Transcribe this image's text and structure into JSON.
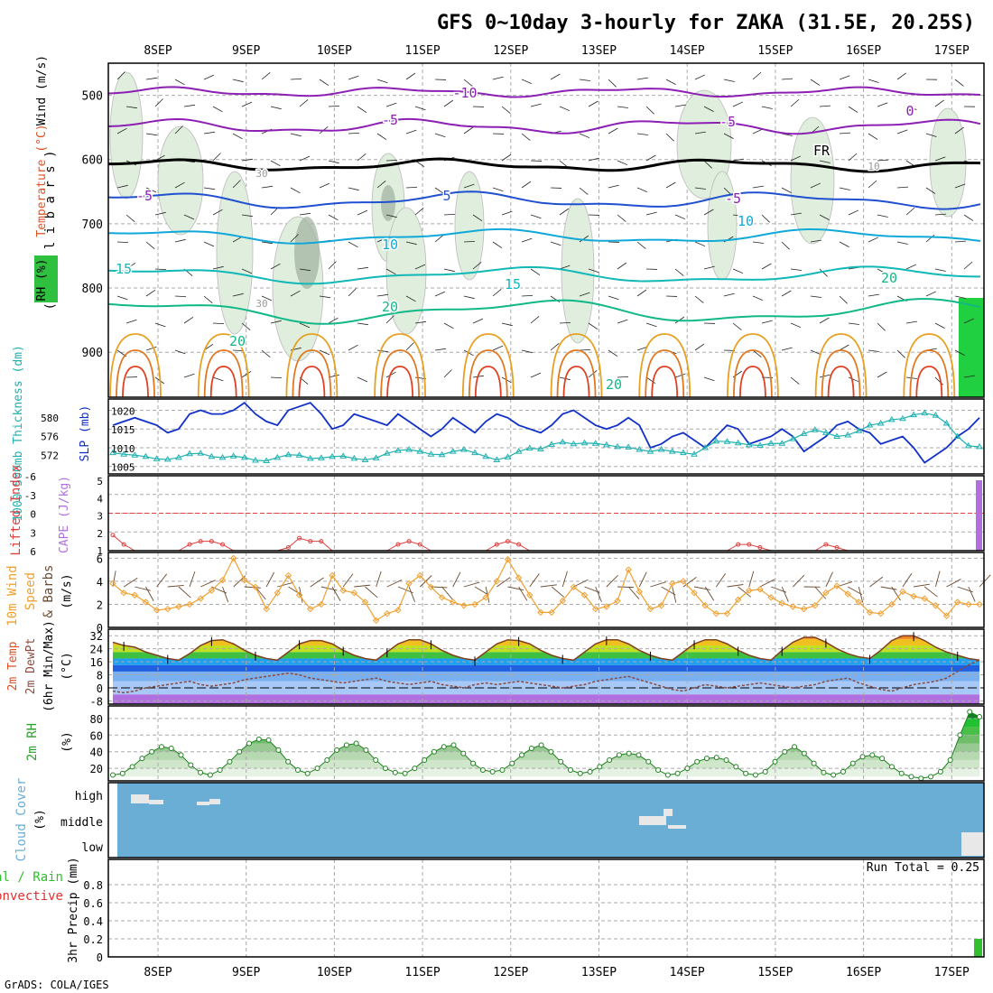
{
  "title": "GFS 0~10day 3-hourly for ZAKA (31.5E, 20.25S)",
  "footer": "GrADS: COLA/IGES",
  "dates": [
    "8SEP",
    "9SEP",
    "10SEP",
    "11SEP",
    "12SEP",
    "13SEP",
    "14SEP",
    "15SEP",
    "16SEP",
    "17SEP"
  ],
  "colors": {
    "purple": "#8c1fb4",
    "black": "#000000",
    "blue5": "#2050d0",
    "cyan10": "#10a8d8",
    "teal15": "#10b8b8",
    "green20": "#10b888",
    "orange": "#e8a020",
    "red": "#e04020",
    "slp": "#1030c8",
    "thick": "#20b0b0",
    "li": "#e04040",
    "cape": "#b070e0",
    "wind10": "#f0a030",
    "barb": "#6a4a30",
    "rh2m": "#30a030",
    "cloud": "#6aaed6",
    "cloudFill": "#e8e8e8",
    "precip": "#30c030"
  },
  "chart_data": [
    {
      "panel": "upper-air",
      "type": "contour",
      "ylabel_parts": [
        "Wind (m/s)",
        "Temperature (°C)",
        "RH (%)"
      ],
      "ylabel_unit": "( m i l l i b a r s )",
      "y_ticks": [
        500,
        600,
        700,
        800,
        900
      ],
      "ylim": [
        450,
        970
      ],
      "contour_labels": [
        {
          "text": "-10",
          "level": "-10"
        },
        {
          "text": "-5",
          "level": "-5"
        },
        {
          "text": "-5",
          "level": "-5"
        },
        {
          "text": "FR",
          "level": "0"
        },
        {
          "text": "-5",
          "level": "-5"
        },
        {
          "text": "5",
          "level": "5"
        },
        {
          "text": "-5",
          "level": "-5"
        },
        {
          "text": "10",
          "level": "10"
        },
        {
          "text": "10",
          "level": "10"
        },
        {
          "text": "15",
          "level": "15"
        },
        {
          "text": "15",
          "level": "15"
        },
        {
          "text": "20",
          "level": "20"
        },
        {
          "text": "20",
          "level": "20"
        },
        {
          "text": "20",
          "level": "20"
        },
        {
          "text": "20",
          "level": "20"
        },
        {
          "text": "30",
          "level": "rh30"
        },
        {
          "text": "30",
          "level": "rh30"
        },
        {
          "text": "10",
          "level": "rh10"
        },
        {
          "text": "0",
          "level": "-5"
        }
      ]
    },
    {
      "panel": "slp-thickness",
      "type": "line",
      "ylabel_left": "1000-500mb Thickness (dm)",
      "ylabel_right": "SLP (mb)",
      "y_ticks_left": [
        572,
        576,
        580
      ],
      "y_ticks_right": [
        1005,
        1010,
        1015,
        1020
      ],
      "series": [
        {
          "name": "SLP (mb)",
          "values": [
            1016,
            1017,
            1018,
            1017,
            1016,
            1014,
            1015,
            1019,
            1020,
            1019,
            1019,
            1020,
            1022,
            1019,
            1017,
            1016,
            1020,
            1021,
            1022,
            1019,
            1015,
            1016,
            1019,
            1018,
            1017,
            1016,
            1019,
            1017,
            1015,
            1013,
            1015,
            1018,
            1016,
            1014,
            1017,
            1019,
            1018,
            1016,
            1015,
            1014,
            1016,
            1019,
            1020,
            1018,
            1016,
            1015,
            1016,
            1018,
            1016,
            1010,
            1011,
            1013,
            1014,
            1012,
            1010,
            1013,
            1016,
            1015,
            1011,
            1012,
            1013,
            1015,
            1013,
            1009,
            1011,
            1013,
            1016,
            1017,
            1015,
            1014,
            1011,
            1012,
            1013,
            1010,
            1006,
            1008,
            1010,
            1013,
            1015,
            1018
          ]
        },
        {
          "name": "Thickness (dm)",
          "values": [
            572.5,
            572.2,
            572,
            571.7,
            571.2,
            571.1,
            571.5,
            572.3,
            572.4,
            571.7,
            571.5,
            571.8,
            571.5,
            570.9,
            570.8,
            571.5,
            572.1,
            572,
            571.3,
            571.4,
            571.7,
            571.8,
            571.3,
            571,
            571.4,
            572.4,
            573,
            573.2,
            572.8,
            572.2,
            572.1,
            572.8,
            573.2,
            572.5,
            571.7,
            571,
            571.6,
            572.8,
            573.5,
            573.3,
            574.3,
            574.8,
            574.4,
            574.6,
            574.5,
            574.2,
            573.8,
            573.7,
            573.2,
            572.8,
            573.2,
            572.8,
            572.5,
            572.2,
            573.6,
            575,
            574.9,
            574.6,
            574.2,
            574.1,
            574.5,
            574.5,
            575.5,
            576.6,
            577.4,
            576.8,
            576,
            576.3,
            577.2,
            578.4,
            578.8,
            579.6,
            579.8,
            580.6,
            581,
            580.5,
            578.8,
            576,
            574,
            573.8
          ]
        }
      ]
    },
    {
      "panel": "lifted-cape",
      "type": "line",
      "ylabel_left": "Lifted Index",
      "ylabel_right": "CAPE (J/kg)",
      "y_ticks_left": [
        -6,
        -3,
        0,
        3,
        6
      ],
      "y_ticks_right": [
        1,
        2,
        3,
        4,
        5
      ],
      "series": [
        {
          "name": "Lifted Index",
          "values": [
            3.5,
            5,
            6.5,
            7,
            8,
            7,
            7,
            5,
            4.5,
            4.5,
            5,
            6,
            7,
            6.5,
            7,
            7,
            5.5,
            4,
            4.5,
            4.5,
            6,
            7.5,
            7,
            7.5,
            7,
            6,
            5,
            4.5,
            5,
            6,
            6.5,
            7,
            7,
            6.5,
            6,
            5,
            4.5,
            5,
            6,
            7,
            6.5,
            6,
            7,
            6.5,
            7,
            6,
            6.5,
            7,
            8,
            7,
            7.5,
            8,
            7,
            6.5,
            7,
            8,
            7,
            5,
            5,
            5.5,
            7,
            8,
            7.5,
            7,
            6.5,
            5,
            5.5,
            6.5,
            7.5,
            7,
            8,
            7,
            7.5,
            7,
            6,
            6.5,
            7,
            7.5,
            7,
            7
          ]
        },
        {
          "name": "CAPE (J/kg)",
          "values": [
            0,
            0,
            0,
            0,
            0,
            0,
            0,
            0,
            0,
            0,
            0,
            0,
            0,
            0,
            0,
            0,
            0,
            0,
            0,
            0,
            0,
            0,
            0,
            0,
            0,
            0,
            0,
            0,
            0,
            0,
            0,
            0,
            0,
            0,
            0,
            0,
            0,
            0,
            0,
            0,
            0,
            0,
            0,
            0,
            0,
            0,
            0,
            0,
            0,
            0,
            0,
            0,
            0,
            0,
            0,
            0,
            0,
            0,
            0,
            0,
            0,
            0,
            0,
            0,
            0,
            0,
            0,
            0,
            0,
            0,
            0,
            0,
            0,
            0,
            0,
            0,
            0,
            0,
            0,
            5
          ]
        }
      ],
      "reference_line": 0
    },
    {
      "panel": "wind10m",
      "type": "line",
      "ylabel": "10m Wind Speed & Barbs (m/s)",
      "y_ticks": [
        0,
        2,
        4,
        6
      ],
      "series": [
        {
          "name": "Speed (m/s)",
          "values": [
            3.8,
            3,
            2.8,
            2.2,
            1.5,
            1.6,
            1.8,
            2,
            2.5,
            3.2,
            4.1,
            6,
            4.1,
            3.5,
            1.6,
            3,
            4.5,
            2.8,
            1.6,
            2,
            4.5,
            3.2,
            3,
            2.2,
            0.6,
            1.2,
            1.5,
            3.8,
            4.5,
            3.5,
            2.6,
            2.2,
            1.9,
            2,
            2.6,
            4,
            5.9,
            4.3,
            2.8,
            1.3,
            1.3,
            2.3,
            3.5,
            2.8,
            1.6,
            1.8,
            2.3,
            5,
            3.1,
            1.6,
            1.9,
            3.8,
            4,
            3,
            1.9,
            1.2,
            1.2,
            2.4,
            3.2,
            3.3,
            2.6,
            2.1,
            1.8,
            1.6,
            1.9,
            3,
            3.6,
            2.9,
            2.2,
            1.3,
            1.2,
            2,
            3.1,
            2.7,
            2.5,
            1.9,
            1,
            2.2,
            2,
            2
          ]
        }
      ]
    },
    {
      "panel": "temp2m",
      "type": "area",
      "ylabel": "2m Temp 2m DewPt (6hr Min/Max) (°C)",
      "y_ticks": [
        -8,
        0,
        8,
        16,
        24,
        32
      ],
      "series": [
        {
          "name": "2m Temp",
          "values": [
            28,
            26,
            25,
            22,
            20,
            18,
            17,
            21,
            26,
            29,
            29.5,
            27,
            23,
            20,
            18,
            17,
            22,
            27,
            29,
            29,
            27,
            23,
            20,
            18,
            17,
            22,
            27,
            29.5,
            29.5,
            27,
            23,
            20,
            18,
            17,
            22,
            27,
            29.5,
            29,
            27,
            23,
            20,
            18,
            17,
            22,
            27,
            29.5,
            29.5,
            27,
            23,
            20,
            18,
            17,
            22,
            27,
            29.5,
            29.5,
            27,
            23,
            20,
            18,
            17,
            23,
            28,
            31,
            31,
            28,
            24,
            21,
            19,
            18,
            23,
            29,
            32,
            32,
            29,
            25,
            22,
            20,
            18,
            17
          ]
        },
        {
          "name": "2m DewPt",
          "values": [
            -2,
            -3,
            -2,
            0,
            1,
            2,
            3,
            4,
            2,
            1,
            2,
            3,
            5,
            6,
            7,
            8,
            9,
            8,
            6,
            5,
            4,
            3,
            4,
            5,
            6,
            4,
            3,
            2,
            3,
            4,
            2,
            1,
            0,
            2,
            3,
            2,
            3,
            4,
            3,
            2,
            1,
            0,
            1,
            2,
            4,
            5,
            6,
            7,
            5,
            3,
            1,
            -1,
            -2,
            0,
            2,
            1,
            0,
            1,
            2,
            3,
            2,
            1,
            0,
            1,
            2,
            4,
            5,
            6,
            3,
            1,
            -1,
            -2,
            0,
            2,
            3,
            4,
            6,
            10,
            14,
            17
          ]
        }
      ]
    },
    {
      "panel": "rh2m",
      "type": "area",
      "ylabel": "2m RH (%)",
      "y_ticks": [
        20,
        40,
        60,
        80
      ],
      "series": [
        {
          "name": "2m RH",
          "values": [
            12,
            14,
            22,
            32,
            40,
            46,
            44,
            36,
            24,
            15,
            12,
            18,
            28,
            40,
            50,
            55,
            54,
            42,
            28,
            18,
            14,
            20,
            30,
            42,
            48,
            50,
            42,
            30,
            20,
            15,
            14,
            20,
            30,
            40,
            46,
            48,
            38,
            26,
            18,
            16,
            18,
            26,
            36,
            44,
            48,
            40,
            28,
            18,
            14,
            16,
            22,
            30,
            36,
            38,
            36,
            28,
            18,
            12,
            14,
            20,
            28,
            32,
            33,
            30,
            22,
            14,
            12,
            16,
            28,
            40,
            46,
            38,
            26,
            15,
            12,
            16,
            26,
            34,
            36,
            32,
            22,
            14,
            10,
            8,
            10,
            16,
            30,
            60,
            88,
            82
          ]
        }
      ]
    },
    {
      "panel": "cloud",
      "type": "heatmap",
      "ylabel": "Cloud Cover (%)",
      "y_ticks": [
        "high",
        "middle",
        "low"
      ]
    },
    {
      "panel": "precip",
      "type": "bar",
      "ylabel": "3hr Precip (mm)",
      "ylabel_left1": "Total / Rain",
      "ylabel_left2": "Convective",
      "annotation": "Run Total = 0.25",
      "y_ticks": [
        0,
        0.2,
        0.4,
        0.6,
        0.8
      ],
      "ylim": [
        0,
        1.0
      ],
      "values_last": 0.2
    }
  ]
}
